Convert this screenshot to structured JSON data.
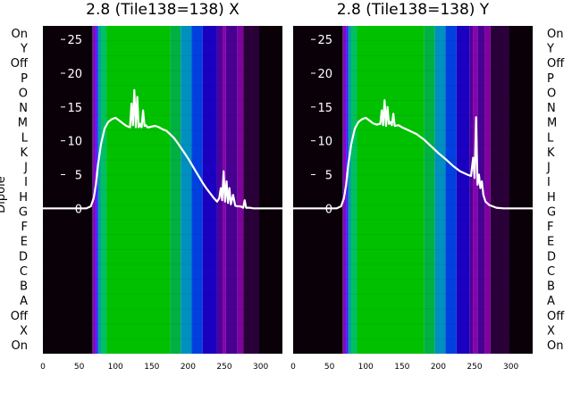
{
  "figure": {
    "left_row_label": "Dipole",
    "row_labels": [
      "On",
      "Y",
      "Off",
      "P",
      "O",
      "N",
      "M",
      "L",
      "K",
      "J",
      "I",
      "H",
      "G",
      "F",
      "E",
      "D",
      "C",
      "B",
      "A",
      "Off",
      "X",
      "On"
    ]
  },
  "chart_data": [
    {
      "type": "heatmap",
      "title": "2.8 (Tile138=138) X",
      "xlim": [
        0,
        330
      ],
      "x_ticks": [
        0,
        50,
        100,
        150,
        200,
        250,
        300
      ],
      "y_overlay_ticks": [
        0,
        5,
        10,
        15,
        20,
        25
      ],
      "y_overlay_range": [
        -21.5,
        27
      ],
      "rows": 22,
      "colormap": "spectral-like (black to purple to blue to cyan to green)",
      "bands": [
        {
          "x": [
            0,
            68
          ],
          "color": "#0a0008"
        },
        {
          "x": [
            68,
            70
          ],
          "color": "#5a0090"
        },
        {
          "x": [
            70,
            73
          ],
          "color": "#8a00c8"
        },
        {
          "x": [
            73,
            76
          ],
          "color": "#3a1cff"
        },
        {
          "x": [
            76,
            80
          ],
          "color": "#00a0a0"
        },
        {
          "x": [
            80,
            88
          ],
          "color": "#00c060"
        },
        {
          "x": [
            88,
            175
          ],
          "color": "#00c000"
        },
        {
          "x": [
            175,
            190
          ],
          "color": "#00b040"
        },
        {
          "x": [
            190,
            205
          ],
          "color": "#0090c0"
        },
        {
          "x": [
            205,
            220
          ],
          "color": "#0040e0"
        },
        {
          "x": [
            220,
            240
          ],
          "color": "#1a00c0"
        },
        {
          "x": [
            240,
            248
          ],
          "color": "#50009a"
        },
        {
          "x": [
            248,
            252
          ],
          "color": "#8a00b0"
        },
        {
          "x": [
            252,
            268
          ],
          "color": "#480090"
        },
        {
          "x": [
            268,
            276
          ],
          "color": "#8000a0"
        },
        {
          "x": [
            276,
            298
          ],
          "color": "#2a0038"
        },
        {
          "x": [
            298,
            330
          ],
          "color": "#0a0008"
        }
      ],
      "series": [
        {
          "x": [
            0,
            60,
            66,
            70,
            73,
            76,
            80,
            85,
            90,
            95,
            100,
            105,
            110,
            115,
            120,
            122,
            124,
            126,
            128,
            130,
            132,
            134,
            136,
            138,
            140,
            142,
            144,
            146,
            150,
            155,
            160,
            165,
            170,
            175,
            180,
            185,
            190,
            195,
            200,
            205,
            210,
            215,
            220,
            225,
            230,
            235,
            240,
            243,
            245,
            247,
            249,
            251,
            253,
            255,
            257,
            259,
            262,
            265,
            268,
            272,
            276,
            278,
            280,
            285,
            290,
            300,
            310,
            330
          ],
          "y": [
            0,
            0,
            0.3,
            1.5,
            3.5,
            6.5,
            9.5,
            11.8,
            12.8,
            13.2,
            13.4,
            13.0,
            12.6,
            12.2,
            12.0,
            15.5,
            12.3,
            17.5,
            12.0,
            16.5,
            12.0,
            12.5,
            12.0,
            14.5,
            12.2,
            12.3,
            12.0,
            12.0,
            12.1,
            12.2,
            12.0,
            11.7,
            11.5,
            11.0,
            10.5,
            9.8,
            9.0,
            8.2,
            7.4,
            6.5,
            5.6,
            4.7,
            3.8,
            3.0,
            2.3,
            1.6,
            1.0,
            1.5,
            3.0,
            1.2,
            5.5,
            1.0,
            4.0,
            0.8,
            3.0,
            0.6,
            2.0,
            0.4,
            0.3,
            0.3,
            0.1,
            1.2,
            0.1,
            0.1,
            0,
            0,
            0,
            0
          ]
        }
      ]
    },
    {
      "type": "heatmap",
      "title": "2.8 (Tile138=138) Y",
      "xlim": [
        0,
        330
      ],
      "x_ticks": [
        0,
        50,
        100,
        150,
        200,
        250,
        300
      ],
      "y_overlay_ticks": [
        0,
        5,
        10,
        15,
        20,
        25
      ],
      "y_overlay_range": [
        -21.5,
        27
      ],
      "rows": 22,
      "colormap": "spectral-like (black to purple to blue to cyan to green)",
      "bands": [
        {
          "x": [
            0,
            68
          ],
          "color": "#0a0008"
        },
        {
          "x": [
            68,
            70
          ],
          "color": "#5a0090"
        },
        {
          "x": [
            70,
            73
          ],
          "color": "#8a00c8"
        },
        {
          "x": [
            73,
            76
          ],
          "color": "#3a1cff"
        },
        {
          "x": [
            76,
            80
          ],
          "color": "#00a0a0"
        },
        {
          "x": [
            80,
            88
          ],
          "color": "#00c060"
        },
        {
          "x": [
            88,
            180
          ],
          "color": "#00c000"
        },
        {
          "x": [
            180,
            195
          ],
          "color": "#00b040"
        },
        {
          "x": [
            195,
            210
          ],
          "color": "#0090c0"
        },
        {
          "x": [
            210,
            225
          ],
          "color": "#0040e0"
        },
        {
          "x": [
            225,
            243
          ],
          "color": "#1a00c0"
        },
        {
          "x": [
            243,
            248
          ],
          "color": "#50009a"
        },
        {
          "x": [
            248,
            254
          ],
          "color": "#8a00b0"
        },
        {
          "x": [
            254,
            264
          ],
          "color": "#480090"
        },
        {
          "x": [
            264,
            272
          ],
          "color": "#8000a0"
        },
        {
          "x": [
            272,
            298
          ],
          "color": "#2a0038"
        },
        {
          "x": [
            298,
            330
          ],
          "color": "#0a0008"
        }
      ],
      "series": [
        {
          "x": [
            0,
            60,
            66,
            70,
            73,
            76,
            80,
            85,
            90,
            95,
            100,
            105,
            110,
            115,
            120,
            122,
            124,
            126,
            128,
            130,
            132,
            134,
            136,
            138,
            140,
            145,
            150,
            160,
            170,
            180,
            190,
            200,
            210,
            220,
            230,
            240,
            245,
            248,
            250,
            252,
            254,
            256,
            258,
            260,
            262,
            265,
            270,
            275,
            280,
            290,
            300,
            330
          ],
          "y": [
            0,
            0,
            0.3,
            1.5,
            3.5,
            6.5,
            9.5,
            11.8,
            12.8,
            13.2,
            13.4,
            13.0,
            12.6,
            12.4,
            12.5,
            14.5,
            12.3,
            16.0,
            12.2,
            15.0,
            12.5,
            12.8,
            12.3,
            14.0,
            12.2,
            12.3,
            12.0,
            11.5,
            11.0,
            10.2,
            9.2,
            8.2,
            7.3,
            6.3,
            5.5,
            5.0,
            4.8,
            7.5,
            4.5,
            13.5,
            3.5,
            5.0,
            3.0,
            4.0,
            2.0,
            1.0,
            0.5,
            0.3,
            0.1,
            0,
            0,
            0
          ]
        }
      ]
    }
  ]
}
